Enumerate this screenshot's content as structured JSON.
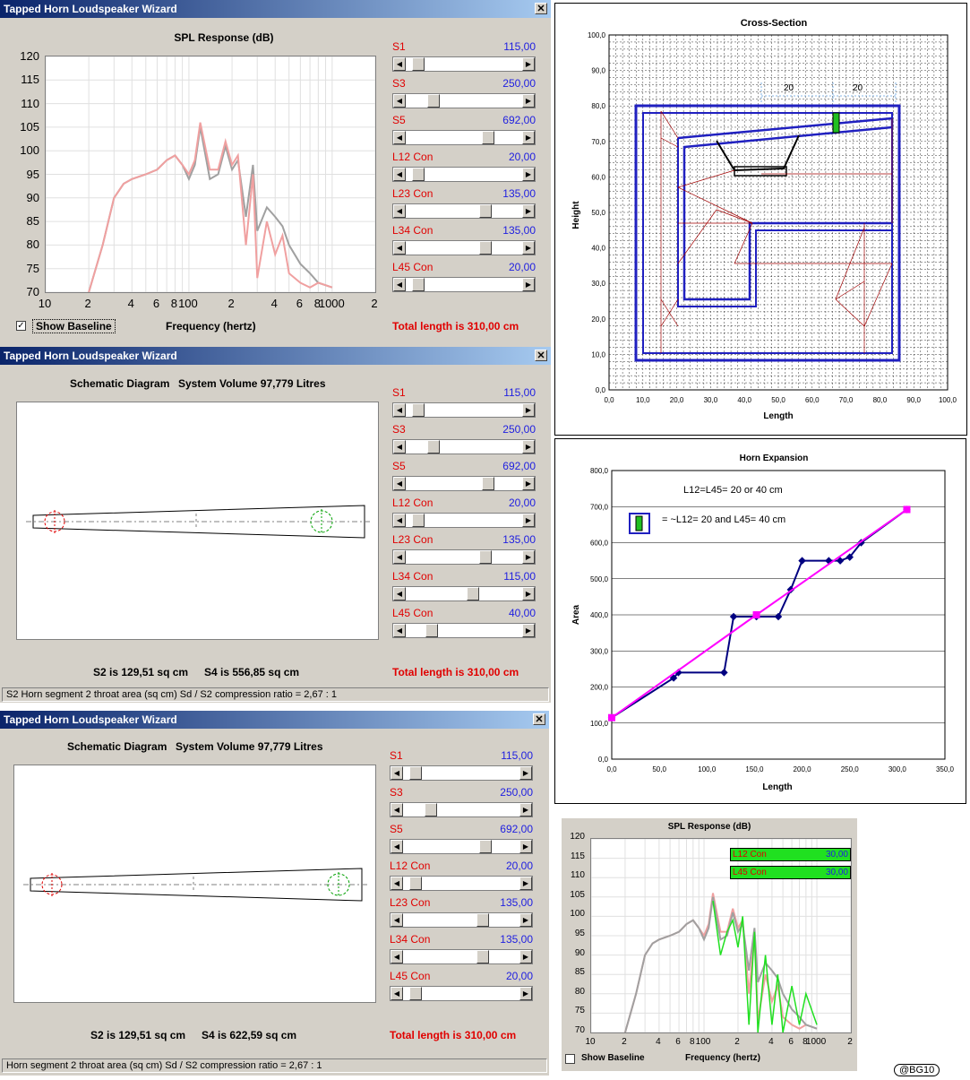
{
  "window_title": "Tapped Horn Loudspeaker Wizard",
  "close_glyph": "✕",
  "win1": {
    "chart_title": "SPL Response (dB)",
    "y_ticks": [
      "120",
      "115",
      "110",
      "105",
      "100",
      "95",
      "90",
      "85",
      "80",
      "75",
      "70"
    ],
    "x_ticks": [
      "10",
      "2",
      "4",
      "6",
      "8",
      "100",
      "2",
      "4",
      "6",
      "8",
      "1000",
      "2"
    ],
    "x_label": "Frequency (hertz)",
    "show_baseline": "Show Baseline",
    "total": "Total length is 310,00 cm",
    "sliders": [
      {
        "label": "S1",
        "value": "115,00",
        "pos": 0.06
      },
      {
        "label": "S3",
        "value": "250,00",
        "pos": 0.21
      },
      {
        "label": "S5",
        "value": "692,00",
        "pos": 0.73
      },
      {
        "label": "L12 Con",
        "value": "20,00",
        "pos": 0.06
      },
      {
        "label": "L23 Con",
        "value": "135,00",
        "pos": 0.71
      },
      {
        "label": "L34 Con",
        "value": "135,00",
        "pos": 0.71
      },
      {
        "label": "L45 Con",
        "value": "20,00",
        "pos": 0.06
      }
    ]
  },
  "win2": {
    "diagram_title": "Schematic Diagram",
    "volume": "System Volume 97,779 Litres",
    "s2": "S2 is 129,51 sq cm",
    "s4": "S4 is 556,85 sq cm",
    "total": "Total length is 310,00 cm",
    "status": "S2   Horn segment 2 throat area  (sq cm)   Sd / S2 compression ratio = 2,67 : 1",
    "sliders": [
      {
        "label": "S1",
        "value": "115,00",
        "pos": 0.06
      },
      {
        "label": "S3",
        "value": "250,00",
        "pos": 0.21
      },
      {
        "label": "S5",
        "value": "692,00",
        "pos": 0.73
      },
      {
        "label": "L12 Con",
        "value": "20,00",
        "pos": 0.06
      },
      {
        "label": "L23 Con",
        "value": "135,00",
        "pos": 0.71
      },
      {
        "label": "L34 Con",
        "value": "115,00",
        "pos": 0.59
      },
      {
        "label": "L45 Con",
        "value": "40,00",
        "pos": 0.19
      }
    ]
  },
  "win3": {
    "diagram_title": "Schematic Diagram",
    "volume": "System Volume 97,779 Litres",
    "s2": "S2 is 129,51 sq cm",
    "s4": "S4 is 622,59 sq cm",
    "total": "Total length is 310,00 cm",
    "status": "Horn segment 2 throat area  (sq cm)   Sd / S2 compression ratio = 2,67 : 1",
    "sliders": [
      {
        "label": "S1",
        "value": "115,00",
        "pos": 0.06
      },
      {
        "label": "S3",
        "value": "250,00",
        "pos": 0.21
      },
      {
        "label": "S5",
        "value": "692,00",
        "pos": 0.73
      },
      {
        "label": "L12 Con",
        "value": "20,00",
        "pos": 0.06
      },
      {
        "label": "L23 Con",
        "value": "135,00",
        "pos": 0.71
      },
      {
        "label": "L34 Con",
        "value": "135,00",
        "pos": 0.71
      },
      {
        "label": "L45 Con",
        "value": "20,00",
        "pos": 0.06
      }
    ]
  },
  "cross": {
    "title": "Cross-Section",
    "xlabel": "Length",
    "ylabel": "Height",
    "ticks": [
      "0,0",
      "10,0",
      "20,0",
      "30,0",
      "40,0",
      "50,0",
      "60,0",
      "70,0",
      "80,0",
      "90,0",
      "100,0"
    ],
    "dim1": "20",
    "dim2": "20"
  },
  "horn": {
    "title": "Horn Expansion",
    "xlabel": "Length",
    "ylabel": "Area",
    "note1": "L12=L45= 20 or 40 cm",
    "note2": "= ~L12= 20 and L45= 40 cm",
    "y_ticks": [
      "800,0",
      "700,0",
      "600,0",
      "500,0",
      "400,0",
      "300,0",
      "200,0",
      "100,0",
      "0,0"
    ],
    "x_ticks": [
      "0,0",
      "50,0",
      "100,0",
      "150,0",
      "200,0",
      "250,0",
      "300,0",
      "350,0"
    ]
  },
  "spl2": {
    "title": "SPL Response (dB)",
    "y_ticks": [
      "120",
      "115",
      "110",
      "105",
      "100",
      "95",
      "90",
      "85",
      "80",
      "75",
      "70"
    ],
    "x_ticks": [
      "10",
      "2",
      "4",
      "6",
      "8",
      "100",
      "2",
      "4",
      "6",
      "8",
      "1000",
      "2"
    ],
    "x_label": "Frequency (hertz)",
    "show_baseline": "Show Baseline",
    "legend": [
      {
        "label": "L12 Con",
        "value": "30,00"
      },
      {
        "label": "L45 Con",
        "value": "30,00"
      }
    ]
  },
  "credit": "@BG10",
  "chart_data": [
    {
      "type": "line",
      "title": "SPL Response (dB)",
      "xlabel": "Frequency (hertz)",
      "ylabel": "",
      "ylim": [
        70,
        120
      ],
      "xlim": [
        10,
        2000
      ],
      "x_scale": "log",
      "series": [
        {
          "color": "#a0a0a0",
          "x": [
            20,
            25,
            30,
            35,
            40,
            50,
            60,
            70,
            80,
            90,
            100,
            110,
            120,
            140,
            160,
            180,
            200,
            220,
            250,
            280,
            300,
            350,
            400,
            450,
            500,
            600,
            700,
            800,
            1000
          ],
          "y": [
            70,
            80,
            90,
            93,
            94,
            95,
            96,
            98,
            99,
            97,
            94,
            97,
            105,
            94,
            95,
            101,
            96,
            98,
            86,
            97,
            83,
            88,
            86,
            84,
            80,
            76,
            74,
            72,
            71
          ]
        },
        {
          "color": "#f0a0a0",
          "x": [
            20,
            25,
            30,
            35,
            40,
            50,
            60,
            70,
            80,
            90,
            100,
            110,
            120,
            140,
            160,
            180,
            200,
            220,
            250,
            280,
            300,
            350,
            400,
            450,
            500,
            600,
            700,
            800,
            1000
          ],
          "y": [
            70,
            80,
            90,
            93,
            94,
            95,
            96,
            98,
            99,
            97,
            95,
            98,
            106,
            96,
            96,
            102,
            97,
            99,
            80,
            95,
            73,
            85,
            78,
            82,
            74,
            72,
            71,
            72,
            71
          ]
        }
      ]
    },
    {
      "type": "line",
      "title": "Horn Expansion",
      "xlabel": "Length",
      "ylabel": "Area",
      "xlim": [
        0,
        350
      ],
      "ylim": [
        0,
        800
      ],
      "series": [
        {
          "color": "#000080",
          "x": [
            0,
            65,
            70,
            118,
            128,
            152,
            175,
            188,
            200,
            228,
            240,
            250,
            262,
            310
          ],
          "y": [
            115,
            225,
            240,
            240,
            395,
            395,
            395,
            470,
            550,
            550,
            550,
            560,
            600,
            692
          ]
        },
        {
          "color": "#ff00ff",
          "x": [
            0,
            152,
            310
          ],
          "y": [
            115,
            400,
            692
          ]
        }
      ]
    },
    {
      "type": "line",
      "title": "SPL Response (dB)",
      "xlabel": "Frequency (hertz)",
      "ylabel": "",
      "ylim": [
        70,
        120
      ],
      "xlim": [
        10,
        2000
      ],
      "x_scale": "log",
      "series": [
        {
          "color": "#f0a0a0",
          "x": [
            20,
            25,
            30,
            35,
            40,
            50,
            60,
            70,
            80,
            90,
            100,
            110,
            120,
            140,
            160,
            180,
            200,
            220,
            250,
            280,
            300,
            350,
            400,
            450,
            500,
            600,
            700,
            800,
            1000
          ],
          "y": [
            70,
            80,
            90,
            93,
            94,
            95,
            96,
            98,
            99,
            97,
            95,
            98,
            106,
            96,
            96,
            102,
            97,
            99,
            80,
            95,
            73,
            85,
            78,
            82,
            74,
            72,
            71,
            72,
            71
          ]
        },
        {
          "color": "#a0a0a0",
          "x": [
            20,
            25,
            30,
            35,
            40,
            50,
            60,
            70,
            80,
            90,
            100,
            110,
            120,
            140,
            160,
            180,
            200,
            220,
            250,
            280,
            300,
            350,
            400,
            450,
            500,
            600,
            700,
            800,
            1000
          ],
          "y": [
            70,
            80,
            90,
            93,
            94,
            95,
            96,
            98,
            99,
            97,
            94,
            97,
            105,
            94,
            95,
            101,
            96,
            98,
            86,
            97,
            83,
            88,
            86,
            84,
            80,
            76,
            74,
            72,
            71
          ]
        },
        {
          "color": "#20e020",
          "x": [
            120,
            140,
            160,
            180,
            200,
            220,
            250,
            280,
            300,
            350,
            400,
            450,
            500,
            600,
            700,
            800,
            1000
          ],
          "y": [
            104,
            90,
            96,
            99,
            92,
            100,
            72,
            96,
            70,
            90,
            72,
            85,
            70,
            82,
            72,
            80,
            72
          ]
        }
      ]
    }
  ]
}
